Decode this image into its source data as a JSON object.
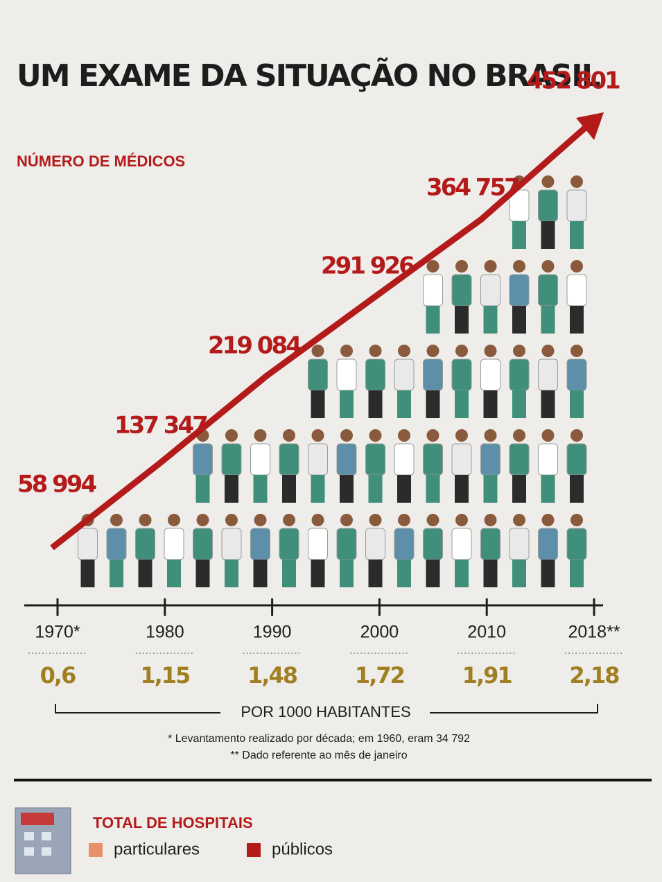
{
  "chart_data": {
    "type": "line",
    "title": "UM EXAME DA SITUAÇÃO NO BRASIL",
    "subtitle": "NÚMERO DE MÉDICOS",
    "categories": [
      "1970*",
      "1980",
      "1990",
      "2000",
      "2010",
      "2018**"
    ],
    "values": [
      58994,
      137347,
      219084,
      291926,
      364757,
      452801
    ],
    "value_labels": [
      "58 994",
      "137 347",
      "219 084",
      "291 926",
      "364 757",
      "452 801"
    ],
    "color": "#b31b1b",
    "per_1000": {
      "label": "POR 1000 HABITANTES",
      "values": [
        0.6,
        1.15,
        1.48,
        1.72,
        1.91,
        2.18
      ],
      "value_labels": [
        "0,6",
        "1,15",
        "1,48",
        "1,72",
        "1,91",
        "2,18"
      ]
    },
    "notes": [
      "* Levantamento realizado por década; em 1960, eram 34 792",
      "** Dado referente ao mês de janeiro"
    ],
    "legend": {
      "title": "TOTAL DE HOSPITAIS",
      "items": [
        {
          "name": "particulares",
          "color": "#e8906a"
        },
        {
          "name": "públicos",
          "color": "#b31b1b"
        }
      ]
    }
  }
}
